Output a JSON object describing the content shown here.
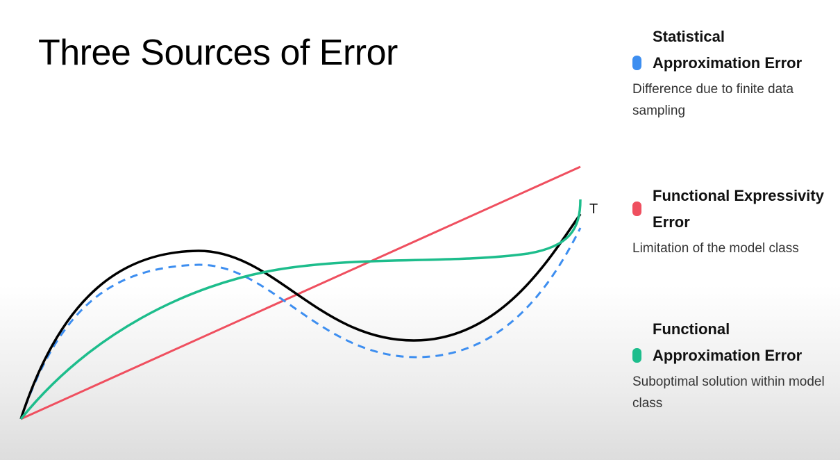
{
  "slide": {
    "title": "Three Sources of Error"
  },
  "legend": [
    {
      "label": "Statistical Approximation Error",
      "description": "Difference due to finite data sampling",
      "color": "#3d8ef0",
      "line_style": "dashed"
    },
    {
      "label": "Functional Expressivity Error",
      "description": "Limitation of the model class",
      "color": "#ef4f5f",
      "line_style": "solid"
    },
    {
      "label": "Functional Approximation Error",
      "description": "Suboptimal solution within model class",
      "color": "#1dbd8c",
      "line_style": "solid"
    }
  ],
  "diagram": {
    "cut_label": "T",
    "true_function_color": "#000000"
  }
}
